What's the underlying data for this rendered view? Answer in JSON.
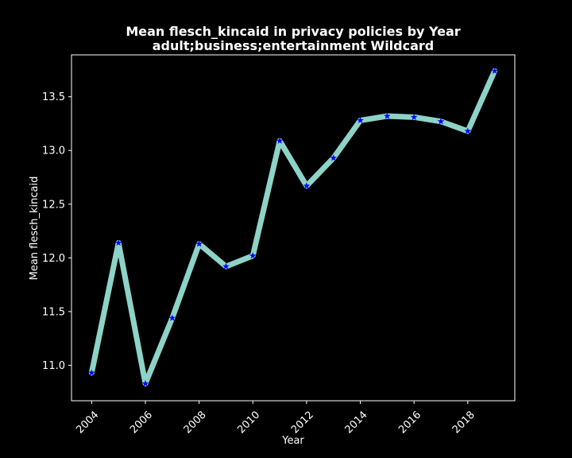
{
  "chart_data": {
    "type": "line",
    "title": "Mean flesch_kincaid in privacy policies by Year",
    "subtitle": "adult;business;entertainment Wildcard",
    "xlabel": "Year",
    "ylabel": "Mean flesch_kincaid",
    "x": [
      2004,
      2005,
      2006,
      2007,
      2008,
      2009,
      2010,
      2011,
      2012,
      2013,
      2014,
      2015,
      2016,
      2017,
      2018,
      2019
    ],
    "series": [
      {
        "values": [
          10.93,
          12.14,
          10.83,
          11.44,
          12.13,
          11.92,
          12.02,
          13.09,
          12.67,
          12.93,
          13.28,
          13.32,
          13.31,
          13.27,
          13.18,
          13.74
        ]
      }
    ],
    "xticks": [
      2004,
      2006,
      2008,
      2010,
      2012,
      2014,
      2016,
      2018
    ],
    "xtick_labels": [
      "2004",
      "2006",
      "2008",
      "2010",
      "2012",
      "2014",
      "2016",
      "2018"
    ],
    "yticks": [
      11.0,
      11.5,
      12.0,
      12.5,
      13.0,
      13.5
    ],
    "ytick_labels": [
      "11.0",
      "11.5",
      "12.0",
      "12.5",
      "13.0",
      "13.5"
    ],
    "xlim": [
      2003.25,
      2019.75
    ],
    "ylim": [
      10.67,
      13.89
    ],
    "grid": false,
    "colors": {
      "background": "#000000",
      "axes": "#ffffff",
      "text": "#ffffff",
      "line": "#8dd3c7",
      "marker": "#0000ff"
    },
    "marker": "star"
  }
}
